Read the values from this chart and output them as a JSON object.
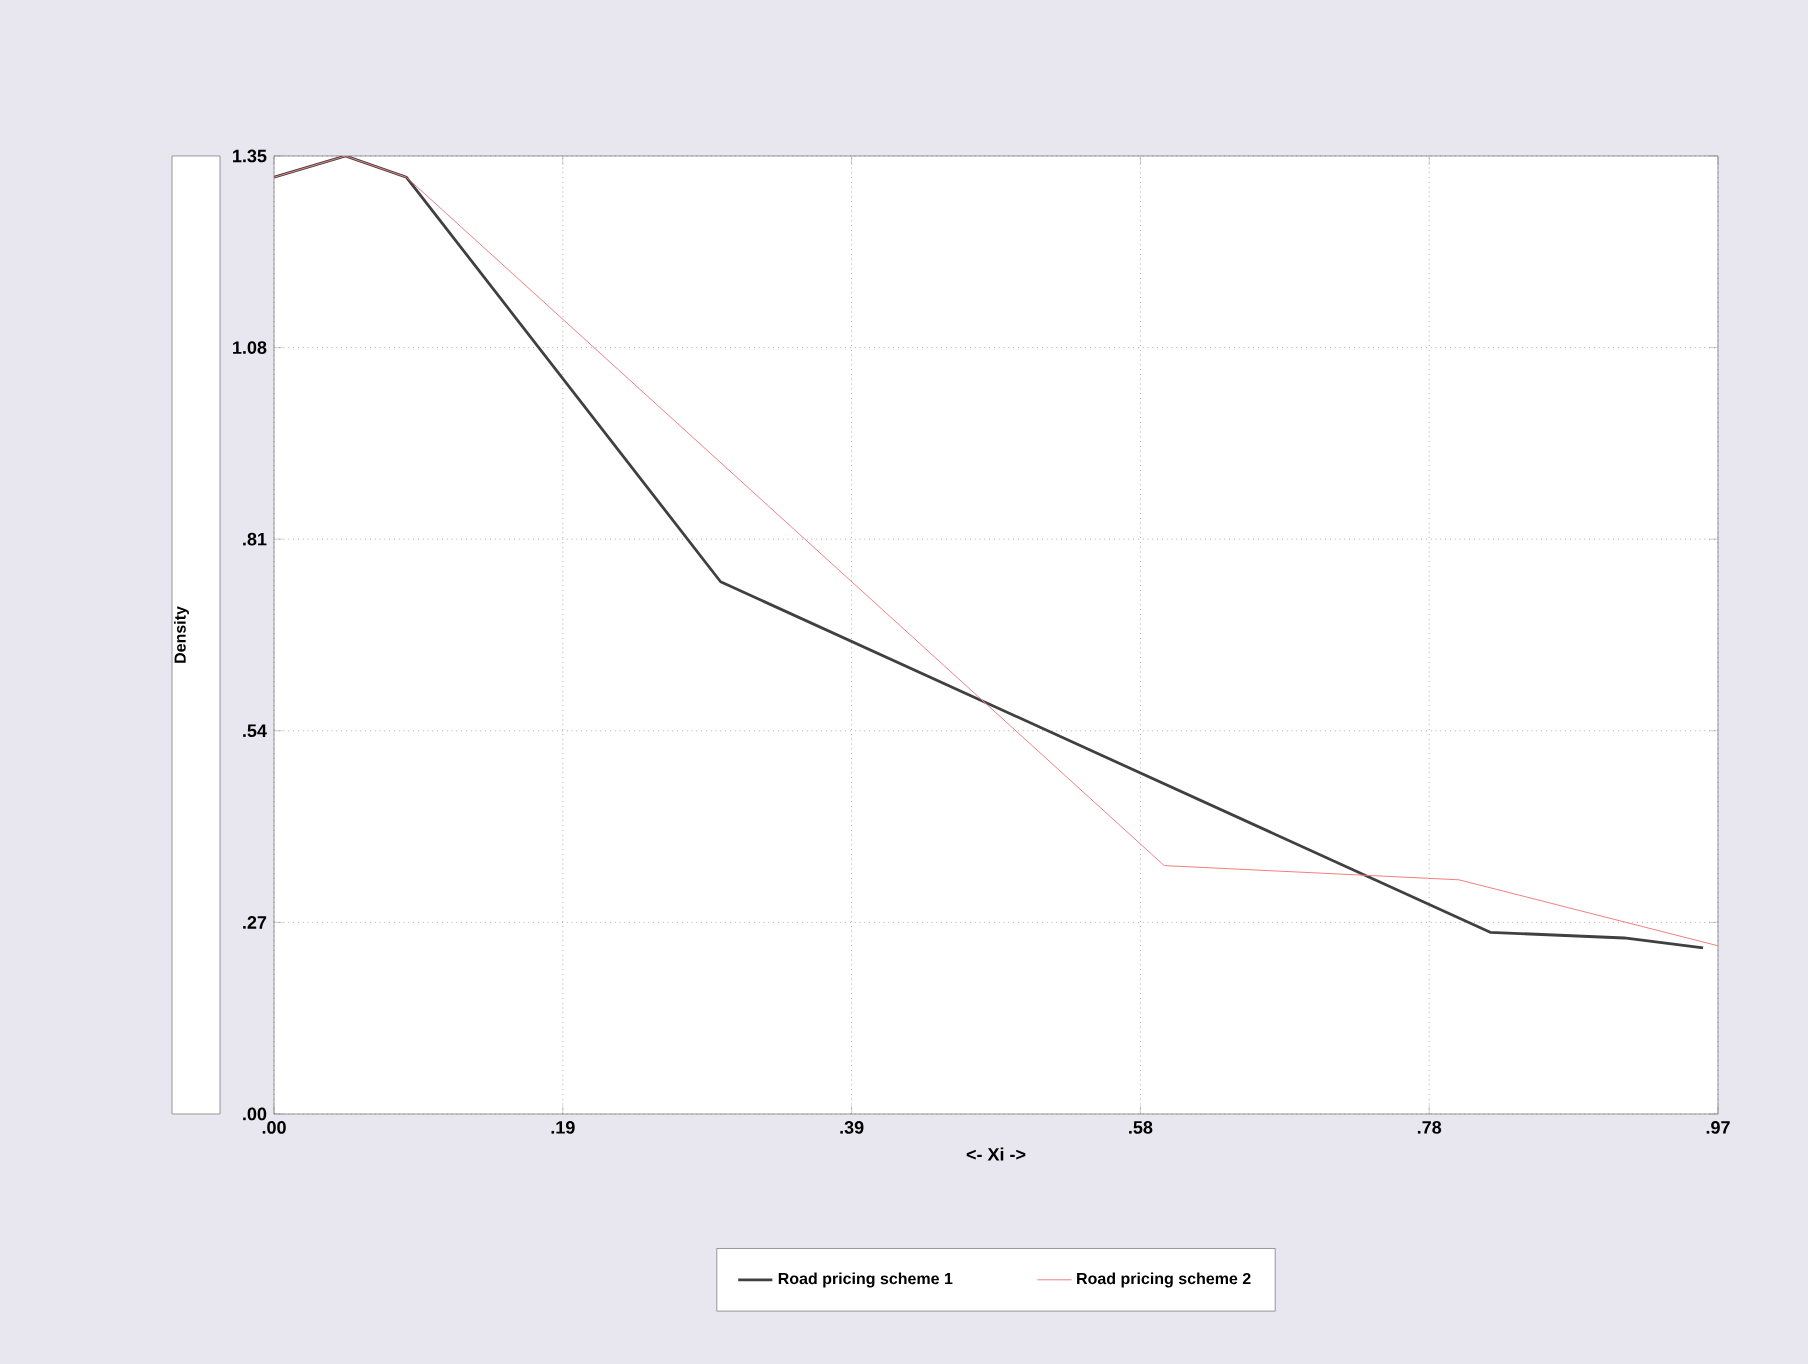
{
  "chart_data": {
    "type": "line",
    "xlabel": "<- Xi ->",
    "ylabel": "Density",
    "xlim": [
      0,
      0.97
    ],
    "ylim": [
      0,
      1.35
    ],
    "xticks": [
      {
        "value": 0,
        "label": ".00"
      },
      {
        "value": 0.194,
        "label": ".19"
      },
      {
        "value": 0.388,
        "label": ".39"
      },
      {
        "value": 0.582,
        "label": ".58"
      },
      {
        "value": 0.776,
        "label": ".78"
      },
      {
        "value": 0.97,
        "label": ".97"
      }
    ],
    "yticks": [
      {
        "value": 0,
        "label": ".00"
      },
      {
        "value": 0.27,
        "label": ".27"
      },
      {
        "value": 0.54,
        "label": ".54"
      },
      {
        "value": 0.81,
        "label": ".81"
      },
      {
        "value": 1.08,
        "label": "1.08"
      },
      1.35
    ],
    "grid": true,
    "legend": "bottom",
    "series": [
      {
        "name": "Road pricing scheme 1",
        "color": "#404040",
        "x": [
          0,
          0.048,
          0.089,
          0.3,
          0.817,
          0.907,
          0.96
        ],
        "values": [
          1.32,
          1.35,
          1.32,
          0.75,
          0.256,
          0.248,
          0.234
        ]
      },
      {
        "name": "Road pricing scheme 2",
        "color": "#f08080",
        "x": [
          0,
          0.048,
          0.089,
          0.598,
          0.796,
          0.97
        ],
        "values": [
          1.32,
          1.35,
          1.32,
          0.35,
          0.33,
          0.237
        ]
      }
    ]
  }
}
